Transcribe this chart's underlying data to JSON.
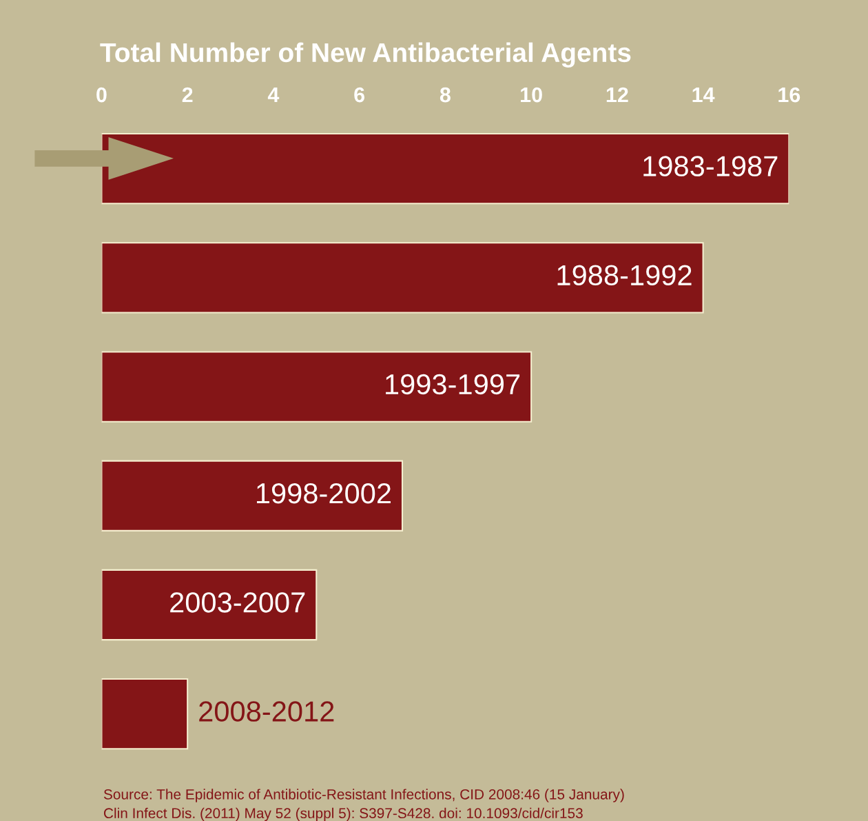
{
  "chart_data": {
    "type": "bar",
    "orientation": "horizontal",
    "title": "Total Number of New Antibacterial Agents",
    "categories": [
      "1983-1987",
      "1988-1992",
      "1993-1997",
      "1998-2002",
      "2003-2007",
      "2008-2012"
    ],
    "values": [
      16,
      14,
      10,
      7,
      5,
      2
    ],
    "color": "#841517",
    "xlim": [
      0,
      16
    ],
    "xticks": [
      0,
      2,
      4,
      6,
      8,
      10,
      12,
      14,
      16
    ],
    "grid": false,
    "legend": false,
    "tick_labels": "x",
    "annotations": [
      "Source: The Epidemic of Antibiotic-Resistant Infections, CID 2008:46 (15 January)",
      "Clin Infect Dis. (2011) May 52 (suppl 5): S397-S428. doi: 10.1093/cid/cir153"
    ]
  }
}
